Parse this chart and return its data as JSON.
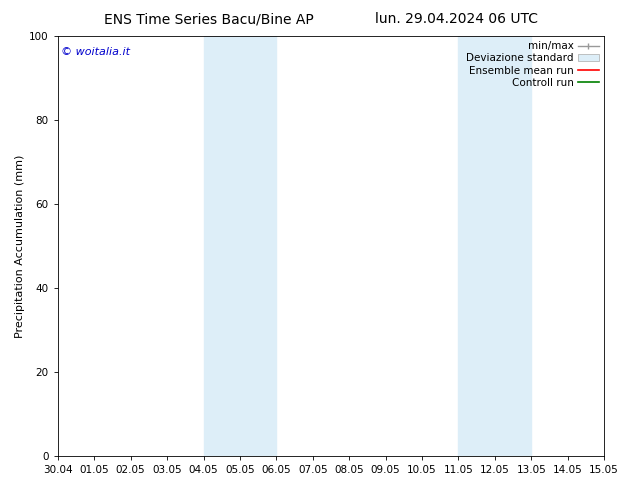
{
  "title_left": "ENS Time Series Bacu/Bine AP",
  "title_right": "lun. 29.04.2024 06 UTC",
  "ylabel": "Precipitation Accumulation (mm)",
  "ylim": [
    0,
    100
  ],
  "yticks": [
    0,
    20,
    40,
    60,
    80,
    100
  ],
  "xtick_labels": [
    "30.04",
    "01.05",
    "02.05",
    "03.05",
    "04.05",
    "05.05",
    "06.05",
    "07.05",
    "08.05",
    "09.05",
    "10.05",
    "11.05",
    "12.05",
    "13.05",
    "14.05",
    "15.05"
  ],
  "xlim": [
    0,
    15
  ],
  "shaded_regions": [
    {
      "x_start": 4.0,
      "x_end": 6.0,
      "color": "#ddeef8"
    },
    {
      "x_start": 11.0,
      "x_end": 13.0,
      "color": "#ddeef8"
    }
  ],
  "background_color": "#ffffff",
  "legend_items": [
    {
      "label": "min/max",
      "color": "#aaaaaa"
    },
    {
      "label": "Deviazione standard",
      "color": "#ddeef8"
    },
    {
      "label": "Ensemble mean run",
      "color": "#ff0000"
    },
    {
      "label": "Controll run",
      "color": "#008000"
    }
  ],
  "watermark_text": "© woitalia.it",
  "watermark_color": "#0000cc",
  "title_fontsize": 10,
  "axis_label_fontsize": 8,
  "tick_fontsize": 7.5,
  "legend_fontsize": 7.5,
  "watermark_fontsize": 8
}
